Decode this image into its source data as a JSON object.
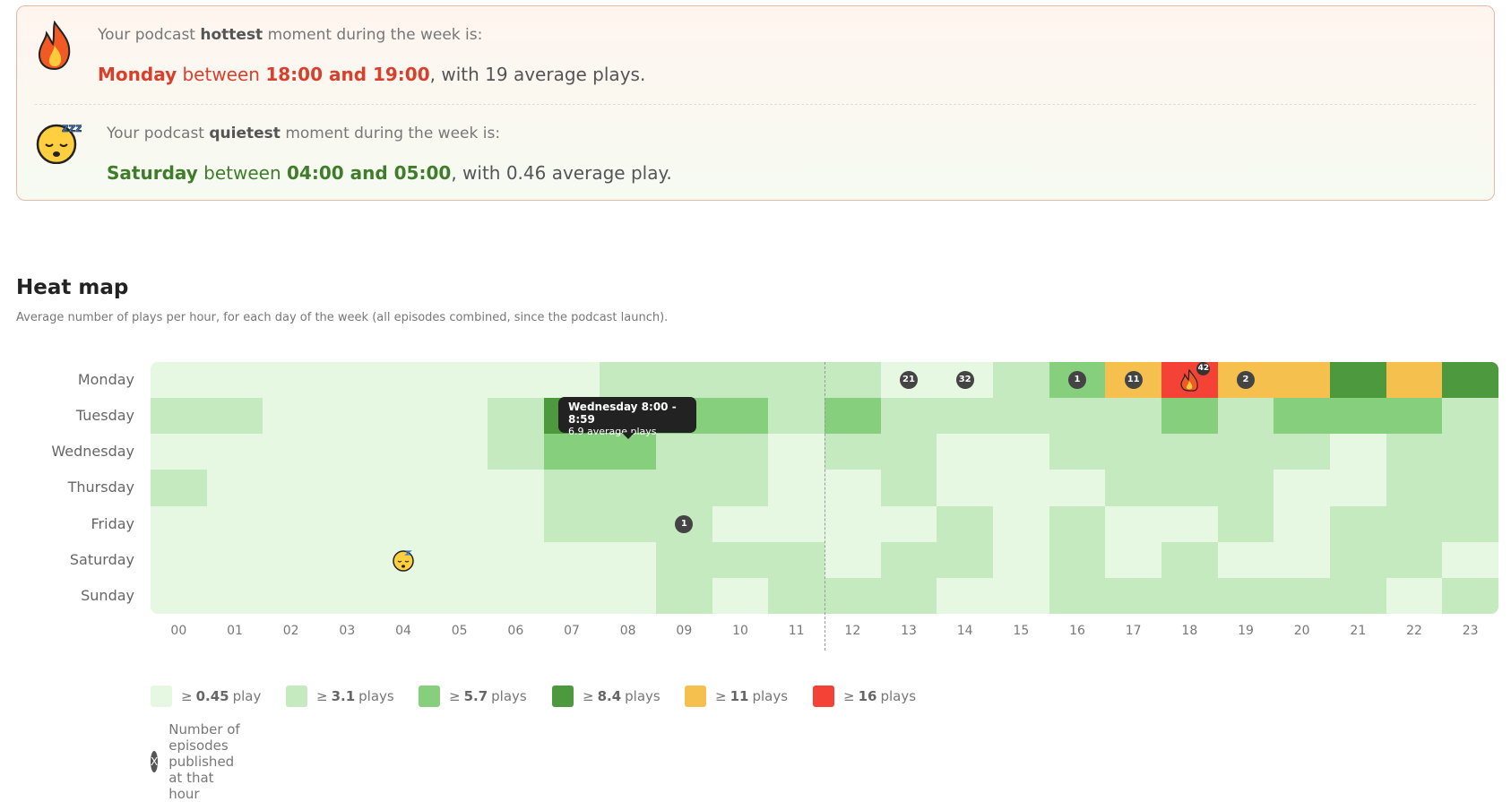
{
  "summary": {
    "hottest": {
      "intro": [
        "Your podcast",
        "hottest",
        "moment during the week is:"
      ],
      "day": "Monday",
      "between": "between",
      "time": "18:00 and 19:00",
      "rest": ", with 19 average plays."
    },
    "quietest": {
      "intro": [
        "Your podcast",
        "quietest",
        "moment during the week is:"
      ],
      "day": "Saturday",
      "between": "between",
      "time": "04:00 and 05:00",
      "rest": ", with 0.46 average play."
    }
  },
  "heatmap": {
    "title": "Heat map",
    "subtitle": "Average number of plays per hour, for each day of the week (all episodes combined, since the podcast launch).",
    "hours": [
      "00",
      "01",
      "02",
      "03",
      "04",
      "05",
      "06",
      "07",
      "08",
      "09",
      "10",
      "11",
      "12",
      "13",
      "14",
      "15",
      "16",
      "17",
      "18",
      "19",
      "20",
      "21",
      "22",
      "23"
    ],
    "rows": [
      {
        "day": "Monday",
        "levels": [
          0,
          0,
          0,
          0,
          0,
          0,
          0,
          0,
          1,
          1,
          1,
          1,
          1,
          0,
          0,
          1,
          2,
          4,
          5,
          4,
          4,
          3,
          4,
          3
        ],
        "episodes": [
          null,
          null,
          null,
          null,
          null,
          null,
          null,
          null,
          null,
          null,
          null,
          null,
          null,
          "21",
          "32",
          null,
          "1",
          "11",
          "42",
          "2",
          null,
          null,
          null,
          null
        ]
      },
      {
        "day": "Tuesday",
        "levels": [
          1,
          1,
          0,
          0,
          0,
          0,
          1,
          3,
          2,
          2,
          2,
          1,
          2,
          1,
          1,
          1,
          1,
          1,
          2,
          1,
          2,
          2,
          2,
          1
        ]
      },
      {
        "day": "Wednesday",
        "levels": [
          0,
          0,
          0,
          0,
          0,
          0,
          1,
          2,
          2,
          1,
          1,
          0,
          1,
          1,
          0,
          0,
          1,
          1,
          1,
          1,
          1,
          0,
          1,
          1
        ]
      },
      {
        "day": "Thursday",
        "levels": [
          1,
          0,
          0,
          0,
          0,
          0,
          0,
          1,
          1,
          1,
          1,
          0,
          0,
          1,
          0,
          0,
          0,
          1,
          1,
          1,
          0,
          0,
          1,
          1
        ]
      },
      {
        "day": "Friday",
        "levels": [
          0,
          0,
          0,
          0,
          0,
          0,
          0,
          1,
          1,
          1,
          0,
          0,
          0,
          0,
          1,
          0,
          1,
          0,
          0,
          1,
          0,
          1,
          1,
          1
        ],
        "episodes": [
          null,
          null,
          null,
          null,
          null,
          null,
          null,
          null,
          null,
          "1",
          null,
          null,
          null,
          null,
          null,
          null,
          null,
          null,
          null,
          null,
          null,
          null,
          null,
          null
        ]
      },
      {
        "day": "Saturday",
        "levels": [
          0,
          0,
          0,
          0,
          0,
          0,
          0,
          0,
          0,
          1,
          1,
          1,
          0,
          1,
          1,
          0,
          1,
          0,
          1,
          0,
          0,
          1,
          1,
          0
        ]
      },
      {
        "day": "Sunday",
        "levels": [
          0,
          0,
          0,
          0,
          0,
          0,
          0,
          0,
          0,
          1,
          0,
          1,
          1,
          1,
          0,
          0,
          1,
          1,
          1,
          1,
          1,
          1,
          0,
          1
        ]
      }
    ],
    "tooltip": {
      "title": "Wednesday 8:00 - 8:59",
      "text": "6.9 average plays"
    }
  },
  "legend": {
    "items": [
      {
        "symbol": "≥",
        "value": "0.45",
        "unit": "play",
        "color": "#e6f7e2"
      },
      {
        "symbol": "≥",
        "value": "3.1",
        "unit": "plays",
        "color": "#c6eabf"
      },
      {
        "symbol": "≥",
        "value": "5.7",
        "unit": "plays",
        "color": "#86cf7c"
      },
      {
        "symbol": "≥",
        "value": "8.4",
        "unit": "plays",
        "color": "#4d993e"
      },
      {
        "symbol": "≥",
        "value": "11",
        "unit": "plays",
        "color": "#f6c04f"
      },
      {
        "symbol": "≥",
        "value": "16",
        "unit": "plays",
        "color": "#f44336"
      }
    ],
    "note": {
      "badge": "X",
      "text": "Number of episodes published at that hour"
    }
  }
}
